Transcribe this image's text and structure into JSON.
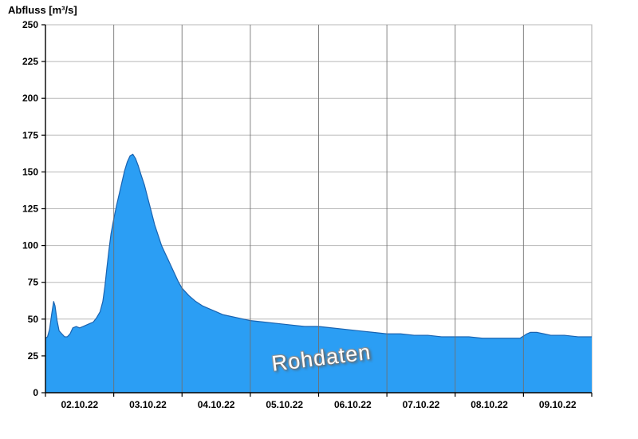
{
  "title": "Abfluss [m³/s]",
  "watermark": "Rohdaten",
  "chart_data": {
    "type": "area",
    "title": "Abfluss [m³/s]",
    "ylabel": "Abfluss [m³/s]",
    "xlabel": "",
    "legend": "none",
    "grid": true,
    "ylim": [
      0,
      250
    ],
    "ytick_step": 25,
    "yticks": [
      0,
      25,
      50,
      75,
      100,
      125,
      150,
      175,
      200,
      225,
      250
    ],
    "x_unit": "days from 02.10.22 00:00",
    "xlim_days": [
      0,
      8
    ],
    "x_date_labels": [
      "02.10.22",
      "03.10.22",
      "04.10.22",
      "05.10.22",
      "06.10.22",
      "07.10.22",
      "08.10.22",
      "09.10.22"
    ],
    "series": [
      {
        "name": "Rohdaten",
        "x": [
          0,
          0.03,
          0.06,
          0.09,
          0.12,
          0.14,
          0.17,
          0.2,
          0.24,
          0.28,
          0.32,
          0.36,
          0.4,
          0.45,
          0.5,
          0.55,
          0.6,
          0.65,
          0.7,
          0.75,
          0.8,
          0.84,
          0.87,
          0.9,
          0.93,
          0.96,
          1.0,
          1.04,
          1.08,
          1.12,
          1.16,
          1.2,
          1.24,
          1.28,
          1.32,
          1.36,
          1.4,
          1.45,
          1.5,
          1.55,
          1.6,
          1.65,
          1.7,
          1.75,
          1.8,
          1.85,
          1.9,
          1.95,
          2.0,
          2.1,
          2.2,
          2.3,
          2.4,
          2.5,
          2.6,
          2.7,
          2.8,
          2.9,
          3.0,
          3.2,
          3.4,
          3.6,
          3.8,
          4.0,
          4.2,
          4.4,
          4.6,
          4.8,
          5.0,
          5.2,
          5.4,
          5.6,
          5.8,
          6.0,
          6.2,
          6.4,
          6.6,
          6.8,
          6.95,
          7.05,
          7.1,
          7.2,
          7.3,
          7.4,
          7.5,
          7.6,
          7.8,
          8.0
        ],
        "y": [
          37,
          38,
          43,
          53,
          62,
          59,
          49,
          42,
          40,
          38,
          38,
          40,
          44,
          45,
          44,
          45,
          46,
          47,
          48,
          51,
          55,
          62,
          72,
          85,
          97,
          108,
          118,
          127,
          135,
          143,
          151,
          157,
          161,
          162,
          159,
          154,
          148,
          141,
          132,
          123,
          114,
          107,
          100,
          95,
          90,
          85,
          80,
          75,
          71,
          66,
          62,
          59,
          57,
          55,
          53,
          52,
          51,
          50,
          49,
          48,
          47,
          46,
          45,
          45,
          44,
          43,
          42,
          41,
          40,
          40,
          39,
          39,
          38,
          38,
          38,
          37,
          37,
          37,
          37,
          40,
          41,
          41,
          40,
          39,
          39,
          39,
          38,
          38
        ]
      }
    ],
    "colors": {
      "fill": "#2b9ef4",
      "line": "#1a63b0",
      "axis": "#000000",
      "hgrid": "#b8b8b8",
      "vgrid": "#6e6e6e",
      "border": "#a8a8a8",
      "tick_label": "#000000"
    }
  }
}
